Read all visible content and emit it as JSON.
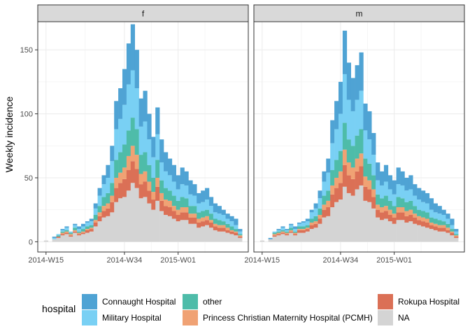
{
  "chart_data": {
    "type": "bar",
    "stacked": true,
    "ylabel": "Weekly incidence",
    "y_ticks": [
      0,
      50,
      100,
      150
    ],
    "ylim": [
      -8,
      172
    ],
    "x_week_index_range": [
      -2,
      49
    ],
    "x_ticks": [
      {
        "label": "2014-W15",
        "week_index": 0
      },
      {
        "label": "2014-W34",
        "week_index": 19
      },
      {
        "label": "2015-W01",
        "week_index": 32
      }
    ],
    "grid": true,
    "legend_position": "bottom",
    "legend_title": "hospital",
    "stack_order_bottom_to_top": [
      "NA",
      "Rokupa Hospital",
      "Princess Christian Maternity Hospital (PCMH)",
      "other",
      "Military Hospital",
      "Connaught Hospital"
    ],
    "hospitals": [
      {
        "name": "Connaught Hospital",
        "color": "#4FA3D4"
      },
      {
        "name": "Military Hospital",
        "color": "#79D0F4"
      },
      {
        "name": "other",
        "color": "#4EBCA9"
      },
      {
        "name": "Princess Christian Maternity Hospital (PCMH)",
        "color": "#F0A274"
      },
      {
        "name": "Rokupa Hospital",
        "color": "#DB7056"
      },
      {
        "name": "NA",
        "color": "#D4D4D4"
      }
    ],
    "panels": [
      {
        "label": "f",
        "weeks": [
          0,
          1,
          2,
          3,
          4,
          5,
          6,
          7,
          8,
          9,
          10,
          11,
          12,
          13,
          14,
          15,
          16,
          17,
          18,
          19,
          20,
          21,
          22,
          23,
          24,
          25,
          26,
          27,
          28,
          29,
          30,
          31,
          32,
          33,
          34,
          35,
          36,
          37,
          38,
          39,
          40,
          41,
          42,
          43,
          44,
          45,
          46,
          47
        ],
        "totals": [
          1,
          0,
          4,
          6,
          10,
          12,
          8,
          14,
          12,
          14,
          16,
          18,
          30,
          42,
          52,
          60,
          75,
          110,
          120,
          135,
          155,
          170,
          150,
          112,
          118,
          100,
          82,
          105,
          80,
          70,
          65,
          60,
          52,
          58,
          55,
          48,
          45,
          38,
          40,
          42,
          35,
          30,
          28,
          25,
          22,
          20,
          18,
          10
        ]
      },
      {
        "label": "m",
        "weeks": [
          0,
          1,
          2,
          3,
          4,
          5,
          6,
          7,
          8,
          9,
          10,
          11,
          12,
          13,
          14,
          15,
          16,
          17,
          18,
          19,
          20,
          21,
          22,
          23,
          24,
          25,
          26,
          27,
          28,
          29,
          30,
          31,
          32,
          33,
          34,
          35,
          36,
          37,
          38,
          39,
          40,
          41,
          42,
          43,
          44,
          45,
          46,
          47
        ],
        "totals": [
          1,
          0,
          3,
          8,
          10,
          12,
          10,
          14,
          12,
          15,
          16,
          18,
          25,
          30,
          40,
          55,
          65,
          95,
          110,
          125,
          165,
          140,
          128,
          138,
          148,
          108,
          102,
          85,
          62,
          55,
          60,
          52,
          48,
          58,
          55,
          50,
          52,
          45,
          42,
          40,
          38,
          34,
          30,
          28,
          25,
          22,
          18,
          10
        ]
      }
    ],
    "composition_fractions_by_week": {
      "NA": [
        0.5,
        0.5,
        0.5,
        0.5,
        0.5,
        0.48,
        0.5,
        0.48,
        0.45,
        0.45,
        0.44,
        0.42,
        0.4,
        0.38,
        0.36,
        0.34,
        0.3,
        0.28,
        0.28,
        0.26,
        0.26,
        0.27,
        0.28,
        0.3,
        0.3,
        0.3,
        0.3,
        0.3,
        0.3,
        0.3,
        0.3,
        0.3,
        0.3,
        0.3,
        0.3,
        0.3,
        0.3,
        0.3,
        0.3,
        0.3,
        0.3,
        0.3,
        0.3,
        0.3,
        0.3,
        0.3,
        0.3,
        0.3
      ],
      "Rokupa Hospital": [
        0.08,
        0.08,
        0.08,
        0.09,
        0.1,
        0.1,
        0.1,
        0.1,
        0.1,
        0.1,
        0.1,
        0.1,
        0.1,
        0.1,
        0.1,
        0.1,
        0.1,
        0.1,
        0.1,
        0.1,
        0.1,
        0.1,
        0.1,
        0.1,
        0.1,
        0.1,
        0.1,
        0.1,
        0.1,
        0.1,
        0.1,
        0.1,
        0.1,
        0.1,
        0.1,
        0.1,
        0.1,
        0.1,
        0.1,
        0.1,
        0.1,
        0.1,
        0.1,
        0.1,
        0.1,
        0.1,
        0.1,
        0.1
      ],
      "Princess Christian Maternity Hospital (PCMH)": [
        0.07,
        0.07,
        0.07,
        0.07,
        0.07,
        0.07,
        0.07,
        0.07,
        0.07,
        0.07,
        0.07,
        0.07,
        0.07,
        0.07,
        0.07,
        0.07,
        0.07,
        0.07,
        0.07,
        0.07,
        0.07,
        0.07,
        0.07,
        0.07,
        0.07,
        0.07,
        0.07,
        0.07,
        0.07,
        0.07,
        0.07,
        0.07,
        0.07,
        0.07,
        0.07,
        0.07,
        0.07,
        0.07,
        0.07,
        0.07,
        0.07,
        0.07,
        0.07,
        0.07,
        0.07,
        0.07,
        0.07,
        0.07
      ],
      "other": [
        0.12,
        0.12,
        0.12,
        0.12,
        0.12,
        0.12,
        0.12,
        0.12,
        0.12,
        0.12,
        0.12,
        0.12,
        0.12,
        0.12,
        0.13,
        0.13,
        0.13,
        0.13,
        0.13,
        0.13,
        0.13,
        0.13,
        0.13,
        0.13,
        0.13,
        0.13,
        0.13,
        0.13,
        0.13,
        0.13,
        0.13,
        0.13,
        0.13,
        0.13,
        0.13,
        0.13,
        0.13,
        0.13,
        0.13,
        0.13,
        0.13,
        0.13,
        0.13,
        0.13,
        0.13,
        0.13,
        0.13,
        0.13
      ],
      "Military Hospital": [
        0.13,
        0.13,
        0.13,
        0.13,
        0.13,
        0.14,
        0.13,
        0.14,
        0.15,
        0.15,
        0.16,
        0.17,
        0.18,
        0.19,
        0.19,
        0.2,
        0.22,
        0.22,
        0.22,
        0.23,
        0.23,
        0.22,
        0.21,
        0.2,
        0.2,
        0.2,
        0.19,
        0.19,
        0.18,
        0.18,
        0.18,
        0.18,
        0.18,
        0.18,
        0.18,
        0.18,
        0.18,
        0.18,
        0.18,
        0.18,
        0.18,
        0.18,
        0.18,
        0.18,
        0.18,
        0.18,
        0.18,
        0.18
      ],
      "Connaught Hospital": [
        0.1,
        0.1,
        0.1,
        0.09,
        0.08,
        0.09,
        0.1,
        0.09,
        0.11,
        0.11,
        0.11,
        0.12,
        0.13,
        0.14,
        0.15,
        0.16,
        0.18,
        0.2,
        0.2,
        0.21,
        0.21,
        0.21,
        0.21,
        0.2,
        0.2,
        0.2,
        0.21,
        0.21,
        0.22,
        0.22,
        0.22,
        0.22,
        0.22,
        0.22,
        0.22,
        0.22,
        0.22,
        0.22,
        0.22,
        0.22,
        0.22,
        0.22,
        0.22,
        0.22,
        0.22,
        0.22,
        0.22,
        0.22
      ]
    }
  }
}
